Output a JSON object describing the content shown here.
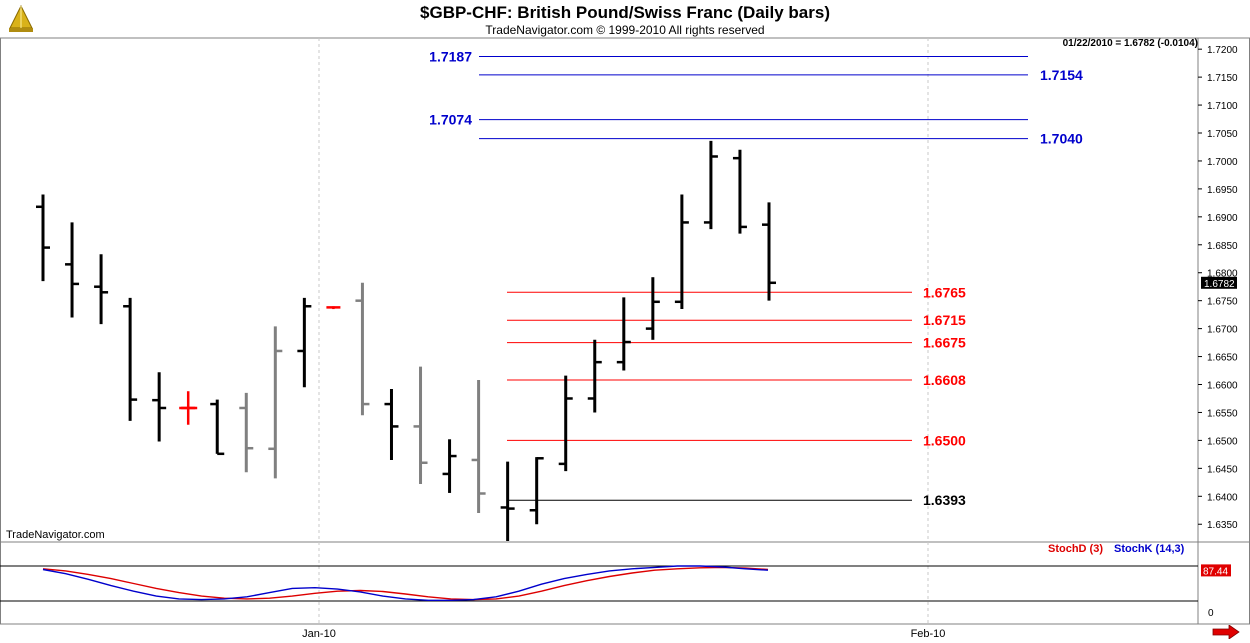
{
  "header": {
    "title": "$GBP-CHF:  British Pound/Swiss Franc  (Daily bars)",
    "subtitle": "TradeNavigator.com © 1999-2010 All rights reserved",
    "readout": "01/22/2010 = 1.6782 (-0.0104)",
    "watermark": "TradeNavigator.com"
  },
  "colors": {
    "up_bar": "#000000",
    "down_bar": "#808080",
    "blue_level": "#0000cc",
    "red_level": "#ff0000",
    "stochD": "#dd0000",
    "stochK": "#0000cc",
    "grid": "#c8c8c8"
  },
  "chart_data": [
    {
      "type": "ohlc",
      "x_labels": [
        "Jan-10",
        "Feb-10"
      ],
      "ylim": [
        1.632,
        1.722
      ],
      "y_ticks": [
        "1.6350",
        "1.6400",
        "1.6450",
        "1.6500",
        "1.6550",
        "1.6600",
        "1.6650",
        "1.6700",
        "1.6750",
        "1.6800",
        "1.6850",
        "1.6900",
        "1.6950",
        "1.7000",
        "1.7050",
        "1.7100",
        "1.7150",
        "1.7200"
      ],
      "last_price": "1.6782",
      "bars": [
        {
          "o": 1.6918,
          "h": 1.694,
          "l": 1.6785,
          "c": 1.6845,
          "color": "black"
        },
        {
          "o": 1.6815,
          "h": 1.689,
          "l": 1.672,
          "c": 1.678,
          "color": "black"
        },
        {
          "o": 1.6775,
          "h": 1.6833,
          "l": 1.6708,
          "c": 1.6765,
          "color": "black"
        },
        {
          "o": 1.674,
          "h": 1.6755,
          "l": 1.6535,
          "c": 1.6573,
          "color": "black"
        },
        {
          "o": 1.6572,
          "h": 1.6622,
          "l": 1.6498,
          "c": 1.6558,
          "color": "black"
        },
        {
          "o": 1.6558,
          "h": 1.6588,
          "l": 1.6528,
          "c": 1.6558,
          "color": "red"
        },
        {
          "o": 1.6565,
          "h": 1.6573,
          "l": 1.6476,
          "c": 1.6476,
          "color": "black"
        },
        {
          "o": 1.6558,
          "h": 1.6585,
          "l": 1.6443,
          "c": 1.6486,
          "color": "gray"
        },
        {
          "o": 1.6485,
          "h": 1.6704,
          "l": 1.6432,
          "c": 1.666,
          "color": "gray"
        },
        {
          "o": 1.666,
          "h": 1.6755,
          "l": 1.6595,
          "c": 1.674,
          "color": "black"
        },
        {
          "o": 1.6738,
          "h": 1.674,
          "l": 1.6735,
          "c": 1.6738,
          "color": "red"
        },
        {
          "o": 1.675,
          "h": 1.6782,
          "l": 1.6545,
          "c": 1.6565,
          "color": "gray"
        },
        {
          "o": 1.6565,
          "h": 1.6592,
          "l": 1.6465,
          "c": 1.6525,
          "color": "black"
        },
        {
          "o": 1.6525,
          "h": 1.6632,
          "l": 1.6422,
          "c": 1.646,
          "color": "gray"
        },
        {
          "o": 1.644,
          "h": 1.6502,
          "l": 1.6406,
          "c": 1.6472,
          "color": "black"
        },
        {
          "o": 1.6465,
          "h": 1.6608,
          "l": 1.637,
          "c": 1.6405,
          "color": "gray"
        },
        {
          "o": 1.638,
          "h": 1.6462,
          "l": 1.632,
          "c": 1.6378,
          "color": "black"
        },
        {
          "o": 1.6375,
          "h": 1.647,
          "l": 1.635,
          "c": 1.6468,
          "color": "black"
        },
        {
          "o": 1.6458,
          "h": 1.6616,
          "l": 1.6445,
          "c": 1.6575,
          "color": "black"
        },
        {
          "o": 1.6575,
          "h": 1.668,
          "l": 1.655,
          "c": 1.664,
          "color": "black"
        },
        {
          "o": 1.664,
          "h": 1.6756,
          "l": 1.6625,
          "c": 1.6676,
          "color": "black"
        },
        {
          "o": 1.67,
          "h": 1.6792,
          "l": 1.668,
          "c": 1.6748,
          "color": "black"
        },
        {
          "o": 1.6748,
          "h": 1.694,
          "l": 1.6735,
          "c": 1.689,
          "color": "black"
        },
        {
          "o": 1.689,
          "h": 1.7036,
          "l": 1.6878,
          "c": 1.7008,
          "color": "black"
        },
        {
          "o": 1.7005,
          "h": 1.702,
          "l": 1.687,
          "c": 1.6882,
          "color": "black"
        },
        {
          "o": 1.6886,
          "h": 1.6926,
          "l": 1.675,
          "c": 1.6782,
          "color": "black"
        }
      ],
      "levels": [
        {
          "value": 1.7187,
          "label": "1.7187",
          "color": "blue",
          "label_side": "left"
        },
        {
          "value": 1.7154,
          "label": "1.7154",
          "color": "blue",
          "label_side": "right"
        },
        {
          "value": 1.7074,
          "label": "1.7074",
          "color": "blue",
          "label_side": "left"
        },
        {
          "value": 1.704,
          "label": "1.7040",
          "color": "blue",
          "label_side": "right"
        },
        {
          "value": 1.6765,
          "label": "1.6765",
          "color": "red",
          "label_side": "right"
        },
        {
          "value": 1.6715,
          "label": "1.6715",
          "color": "red",
          "label_side": "right"
        },
        {
          "value": 1.6675,
          "label": "1.6675",
          "color": "red",
          "label_side": "right"
        },
        {
          "value": 1.6608,
          "label": "1.6608",
          "color": "red",
          "label_side": "right"
        },
        {
          "value": 1.65,
          "label": "1.6500",
          "color": "red",
          "label_side": "right"
        },
        {
          "value": 1.6393,
          "label": "1.6393",
          "color": "black",
          "label_side": "right"
        }
      ]
    },
    {
      "type": "line",
      "ylim": [
        0,
        100
      ],
      "y_ticks": [
        "0"
      ],
      "last_value": "87.44",
      "series": [
        {
          "name": "StochD (3)",
          "values": [
            92,
            86,
            76,
            64,
            50,
            36,
            24,
            14,
            8,
            6,
            8,
            14,
            22,
            28,
            30,
            27,
            20,
            12,
            6,
            4,
            6,
            14,
            28,
            44,
            58,
            70,
            80,
            88,
            92,
            95,
            96,
            94,
            90
          ]
        },
        {
          "name": "StochK (14,3)",
          "values": [
            90,
            78,
            62,
            44,
            28,
            14,
            6,
            4,
            6,
            12,
            24,
            36,
            38,
            34,
            26,
            14,
            6,
            2,
            2,
            4,
            12,
            28,
            48,
            64,
            76,
            86,
            92,
            96,
            100,
            100,
            97,
            92,
            88
          ]
        }
      ]
    }
  ]
}
